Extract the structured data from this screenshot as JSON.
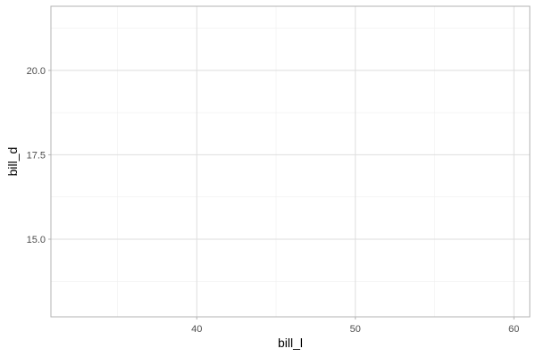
{
  "chart_data": {
    "type": "scatter",
    "title": "",
    "xlabel": "bill_l",
    "ylabel": "bill_d",
    "xlim": [
      30.8,
      61.0
    ],
    "ylim": [
      12.7,
      21.9
    ],
    "x_major_ticks": [
      40,
      50,
      60
    ],
    "x_minor_ticks": [
      35,
      45,
      55
    ],
    "y_major_ticks": [
      15.0,
      17.5,
      20.0
    ],
    "y_minor_ticks": [
      13.75,
      16.25,
      18.75,
      21.25
    ],
    "x_tick_labels": [
      "40",
      "50",
      "60"
    ],
    "y_tick_labels": [
      "15.0",
      "17.5",
      "20.0"
    ],
    "series": [],
    "grid": true,
    "legend": "none",
    "theme": "light",
    "colors": {
      "major_grid": "#dedede",
      "minor_grid": "#efefef",
      "panel_border": "#b3b3b3",
      "tick": "#b3b3b3"
    }
  }
}
